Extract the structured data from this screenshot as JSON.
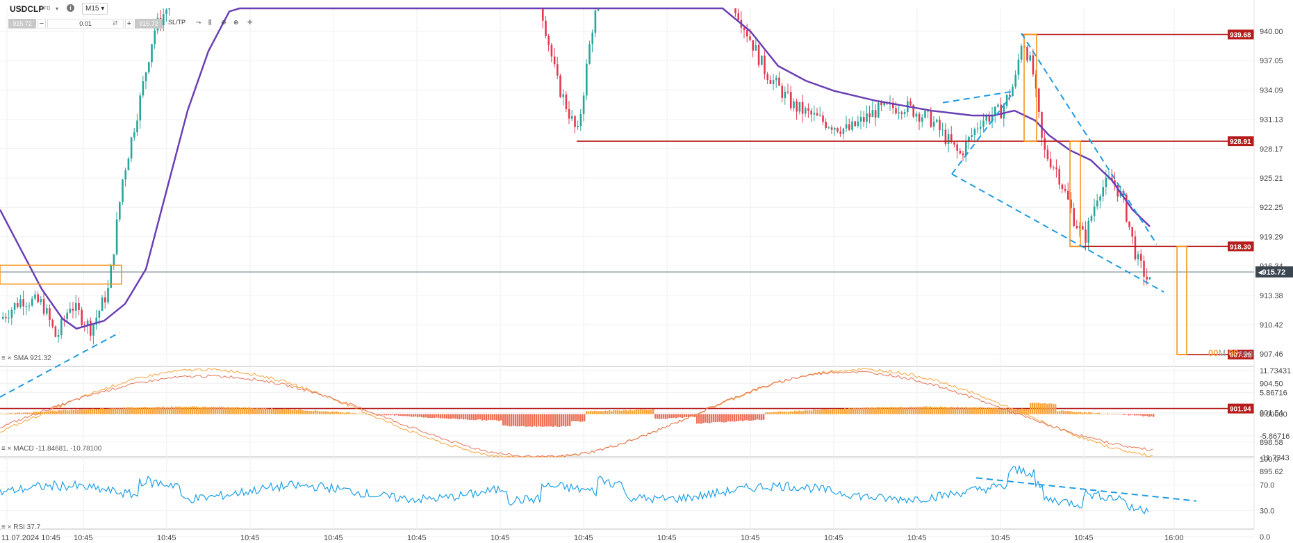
{
  "header": {
    "symbol": "USDCLP",
    "symbol_sub": "CFD",
    "timeframe": "M15",
    "sell_price": "915.72",
    "quantity": "0.01",
    "buy_price": "915.72",
    "sltp_label": "SL/TP"
  },
  "colors": {
    "bull_candle": "#26a69a",
    "bear_candle": "#e53950",
    "sma": "#6a3fb5",
    "trendline": "#1e9be3",
    "level": "#b71c1c",
    "pattern": "#f7941d",
    "macd_pos": "#f7a43b",
    "macd_neg": "#ee7158",
    "rsi": "#1da1e6",
    "current_price_bg": "#3b4651"
  },
  "indicators": {
    "sma_label": "SMA 921.32",
    "macd_label": "MACD -11.84681, -10.78100",
    "rsi_label": "RSI 37.7"
  },
  "timer": {
    "minutes": "00",
    "minutes_unit": "M",
    "seconds": "00",
    "seconds_unit": "seg"
  },
  "chart_data": {
    "type": "candlestick",
    "price_axis_ticks": [
      "940.00",
      "937.05",
      "934.09",
      "931.13",
      "928.17",
      "925.21",
      "922.25",
      "919.29",
      "916.34",
      "913.38",
      "910.42",
      "907.46",
      "904.50",
      "901.54",
      "898.58",
      "895.62"
    ],
    "price_levels": [
      939.68,
      928.91,
      918.3,
      907.39,
      901.94
    ],
    "price_level_labels": [
      "939.68",
      "928.91",
      "918.30",
      "907.39",
      "901.94"
    ],
    "current_price": 915.72,
    "current_price_label": "915.72",
    "x_tick_labels": [
      "11.07.2024 10:45",
      "10:45",
      "10:45",
      "10:45",
      "10:45",
      "10:45",
      "10:45",
      "10:45",
      "10:45",
      "10:45",
      "10:45",
      "10:45",
      "10:45",
      "10:45",
      "16:00"
    ],
    "macd_axis_ticks": [
      "11.73431",
      "5.86716",
      "0.00000",
      "-5.86716",
      "-11.7343"
    ],
    "rsi_axis_ticks": [
      "100.0",
      "70.0",
      "30.0",
      "0.0"
    ]
  }
}
